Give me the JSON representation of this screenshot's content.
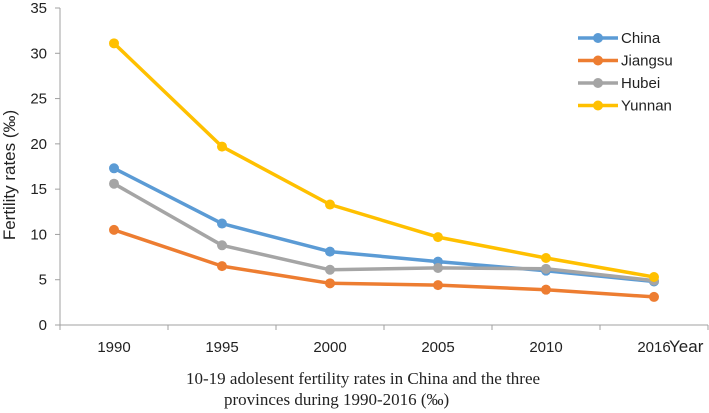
{
  "chart_data": {
    "type": "line",
    "title": "",
    "xlabel": "Year",
    "ylabel": "Fertility rates (‰)",
    "categories": [
      "1990",
      "1995",
      "2000",
      "2005",
      "2010",
      "2016"
    ],
    "ylim": [
      0,
      35
    ],
    "yticks": [
      0,
      5,
      10,
      15,
      20,
      25,
      30,
      35
    ],
    "grid": false,
    "legend_position": "top-right",
    "series": [
      {
        "name": "China",
        "color": "#5B9BD5",
        "values": [
          17.3,
          11.2,
          8.1,
          7.0,
          6.0,
          4.8
        ]
      },
      {
        "name": "Jiangsu",
        "color": "#ED7D31",
        "values": [
          10.5,
          6.5,
          4.6,
          4.4,
          3.9,
          3.1
        ]
      },
      {
        "name": "Hubei",
        "color": "#A5A5A5",
        "values": [
          15.6,
          8.8,
          6.1,
          6.3,
          6.2,
          4.9
        ]
      },
      {
        "name": "Yunnan",
        "color": "#FFC000",
        "values": [
          31.1,
          19.7,
          13.3,
          9.7,
          7.4,
          5.3
        ]
      }
    ]
  },
  "caption": {
    "line1": "10-19 adolesent fertility rates in China and  the three",
    "line2": "provinces during 1990-2016 (‰)"
  }
}
